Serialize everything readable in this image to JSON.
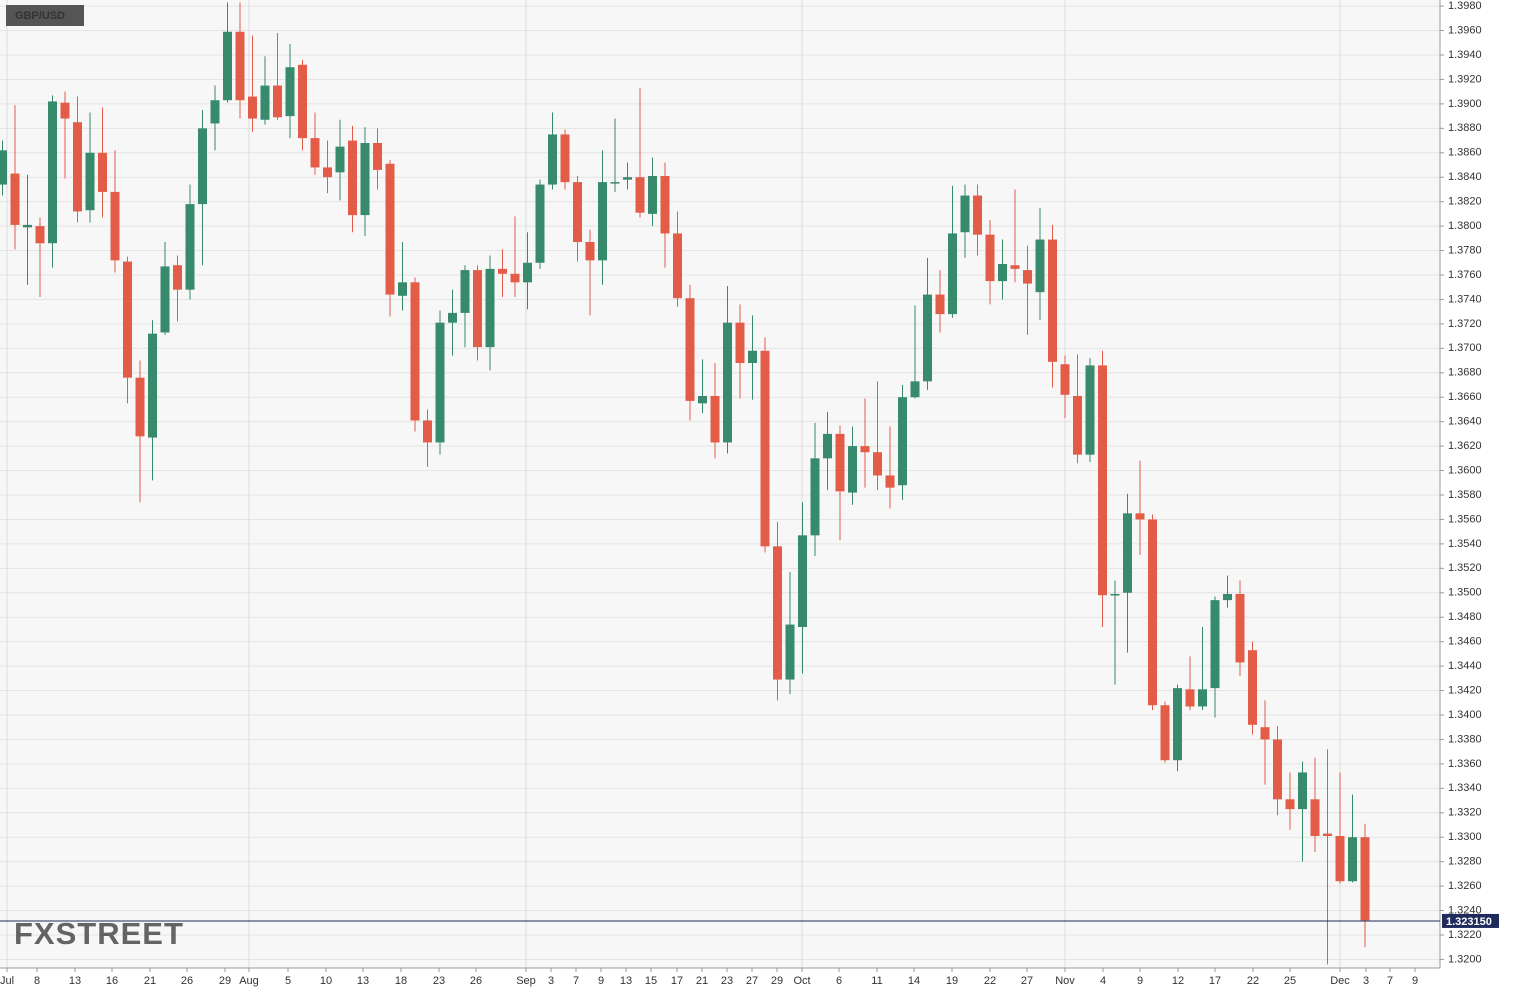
{
  "chart_data": {
    "type": "candlestick",
    "title": "GBP/USD",
    "watermark": "FXSTREET",
    "up_color": "#378a6c",
    "down_color": "#e25c48",
    "grid": true,
    "ylim": [
      1.3193,
      1.3985
    ],
    "xlim": [
      -0.2,
      115
    ],
    "yticks": [
      {
        "value": 1.32,
        "label": "1.3200"
      },
      {
        "value": 1.322,
        "label": "1.3220"
      },
      {
        "value": 1.324,
        "label": "1.3240"
      },
      {
        "value": 1.326,
        "label": "1.3260"
      },
      {
        "value": 1.328,
        "label": "1.3280"
      },
      {
        "value": 1.33,
        "label": "1.3300"
      },
      {
        "value": 1.332,
        "label": "1.3320"
      },
      {
        "value": 1.334,
        "label": "1.3340"
      },
      {
        "value": 1.336,
        "label": "1.3360"
      },
      {
        "value": 1.338,
        "label": "1.3380"
      },
      {
        "value": 1.34,
        "label": "1.3400"
      },
      {
        "value": 1.342,
        "label": "1.3420"
      },
      {
        "value": 1.344,
        "label": "1.3440"
      },
      {
        "value": 1.346,
        "label": "1.3460"
      },
      {
        "value": 1.348,
        "label": "1.3480"
      },
      {
        "value": 1.35,
        "label": "1.3500"
      },
      {
        "value": 1.352,
        "label": "1.3520"
      },
      {
        "value": 1.354,
        "label": "1.3540"
      },
      {
        "value": 1.356,
        "label": "1.3560"
      },
      {
        "value": 1.358,
        "label": "1.3580"
      },
      {
        "value": 1.36,
        "label": "1.3600"
      },
      {
        "value": 1.362,
        "label": "1.3620"
      },
      {
        "value": 1.364,
        "label": "1.3640"
      },
      {
        "value": 1.366,
        "label": "1.3660"
      },
      {
        "value": 1.368,
        "label": "1.3680"
      },
      {
        "value": 1.37,
        "label": "1.3700"
      },
      {
        "value": 1.372,
        "label": "1.3720"
      },
      {
        "value": 1.374,
        "label": "1.3740"
      },
      {
        "value": 1.376,
        "label": "1.3760"
      },
      {
        "value": 1.378,
        "label": "1.3780"
      },
      {
        "value": 1.38,
        "label": "1.3800"
      },
      {
        "value": 1.382,
        "label": "1.3820"
      },
      {
        "value": 1.384,
        "label": "1.3840"
      },
      {
        "value": 1.386,
        "label": "1.3860"
      },
      {
        "value": 1.388,
        "label": "1.3880"
      },
      {
        "value": 1.39,
        "label": "1.3900"
      },
      {
        "value": 1.392,
        "label": "1.3920"
      },
      {
        "value": 1.394,
        "label": "1.3940"
      },
      {
        "value": 1.396,
        "label": "1.3960"
      },
      {
        "value": 1.398,
        "label": "1.3980"
      }
    ],
    "xticks": [
      {
        "value": 0.36,
        "label": "Jul"
      },
      {
        "value": 2.76,
        "label": "8"
      },
      {
        "value": 5.8,
        "label": "13"
      },
      {
        "value": 8.76,
        "label": "16"
      },
      {
        "value": 11.8,
        "label": "21"
      },
      {
        "value": 14.76,
        "label": "26"
      },
      {
        "value": 17.8,
        "label": "29"
      },
      {
        "value": 19.72,
        "label": "Aug"
      },
      {
        "value": 22.84,
        "label": "5"
      },
      {
        "value": 25.88,
        "label": "10"
      },
      {
        "value": 28.84,
        "label": "13"
      },
      {
        "value": 31.88,
        "label": "18"
      },
      {
        "value": 34.92,
        "label": "23"
      },
      {
        "value": 37.88,
        "label": "26"
      },
      {
        "value": 41.88,
        "label": "Sep"
      },
      {
        "value": 43.88,
        "label": "3"
      },
      {
        "value": 45.88,
        "label": "7"
      },
      {
        "value": 47.88,
        "label": "9"
      },
      {
        "value": 49.88,
        "label": "13"
      },
      {
        "value": 51.88,
        "label": "15"
      },
      {
        "value": 53.96,
        "label": "17"
      },
      {
        "value": 55.96,
        "label": "21"
      },
      {
        "value": 57.96,
        "label": "23"
      },
      {
        "value": 59.96,
        "label": "27"
      },
      {
        "value": 61.96,
        "label": "29"
      },
      {
        "value": 63.96,
        "label": "Oct"
      },
      {
        "value": 66.92,
        "label": "6"
      },
      {
        "value": 69.96,
        "label": "11"
      },
      {
        "value": 72.92,
        "label": "14"
      },
      {
        "value": 75.96,
        "label": "19"
      },
      {
        "value": 79.0,
        "label": "22"
      },
      {
        "value": 81.96,
        "label": "27"
      },
      {
        "value": 85.0,
        "label": "Nov"
      },
      {
        "value": 88.04,
        "label": "4"
      },
      {
        "value": 91.0,
        "label": "9"
      },
      {
        "value": 94.04,
        "label": "12"
      },
      {
        "value": 97.0,
        "label": "17"
      },
      {
        "value": 100.04,
        "label": "22"
      },
      {
        "value": 103.0,
        "label": "25"
      },
      {
        "value": 107.0,
        "label": "Dec"
      },
      {
        "value": 109.08,
        "label": "3"
      },
      {
        "value": 111.0,
        "label": "7"
      },
      {
        "value": 113.0,
        "label": "9"
      }
    ],
    "last_price": {
      "value": 1.32315,
      "label": "1.323150"
    },
    "open": [
      1.3834,
      1.3843,
      1.3799,
      1.38,
      1.3786,
      1.3901,
      1.3885,
      1.3813,
      1.386,
      1.3828,
      1.3771,
      1.3676,
      1.3627,
      1.3713,
      1.3768,
      1.3748,
      1.3818,
      1.3884,
      1.3903,
      1.3959,
      1.3906,
      1.3887,
      1.3915,
      1.389,
      1.3932,
      1.3872,
      1.3848,
      1.3844,
      1.387,
      1.3809,
      1.3868,
      1.3851,
      1.3743,
      1.3754,
      1.3641,
      1.3623,
      1.3721,
      1.3729,
      1.3764,
      1.3701,
      1.3765,
      1.3761,
      1.3754,
      1.377,
      1.3834,
      1.3875,
      1.3836,
      1.3787,
      1.3772,
      1.3835,
      1.3838,
      1.384,
      1.381,
      1.3841,
      1.3794,
      1.3741,
      1.3655,
      1.3661,
      1.3623,
      1.3721,
      1.3688,
      1.3698,
      1.3538,
      1.3429,
      1.3472,
      1.3547,
      1.361,
      1.363,
      1.3582,
      1.362,
      1.3615,
      1.3596,
      1.3588,
      1.366,
      1.3673,
      1.3744,
      1.3728,
      1.3795,
      1.3825,
      1.3793,
      1.3755,
      1.3768,
      1.3764,
      1.3746,
      1.3789,
      1.3687,
      1.3661,
      1.3613,
      1.3686,
      1.3498,
      1.35,
      1.3565,
      1.356,
      1.3408,
      1.3363,
      1.3421,
      1.3407,
      1.3422,
      1.3494,
      1.3499,
      1.3453,
      1.339,
      1.338,
      1.3331,
      1.3323,
      1.3331,
      1.3303,
      1.3301,
      1.3264,
      1.33
    ],
    "high": [
      1.387,
      1.3899,
      1.3842,
      1.3807,
      1.3907,
      1.391,
      1.3906,
      1.3893,
      1.3897,
      1.3862,
      1.3775,
      1.369,
      1.3723,
      1.3787,
      1.3776,
      1.3834,
      1.3895,
      1.3915,
      1.3983,
      1.3983,
      1.3956,
      1.3939,
      1.3958,
      1.3949,
      1.3936,
      1.3893,
      1.387,
      1.3887,
      1.3882,
      1.3881,
      1.388,
      1.3854,
      1.3787,
      1.3758,
      1.365,
      1.3731,
      1.3748,
      1.3768,
      1.3768,
      1.3776,
      1.3781,
      1.3808,
      1.3795,
      1.3838,
      1.3893,
      1.3879,
      1.3841,
      1.3797,
      1.3862,
      1.3888,
      1.3852,
      1.3913,
      1.3856,
      1.3852,
      1.3812,
      1.3752,
      1.3691,
      1.3688,
      1.3751,
      1.3736,
      1.3727,
      1.3709,
      1.3558,
      1.3517,
      1.3574,
      1.3639,
      1.3648,
      1.3637,
      1.3636,
      1.3659,
      1.3673,
      1.3636,
      1.367,
      1.3735,
      1.3774,
      1.3764,
      1.3833,
      1.3834,
      1.3834,
      1.3805,
      1.3789,
      1.383,
      1.3784,
      1.3815,
      1.3801,
      1.3694,
      1.3695,
      1.3692,
      1.3698,
      1.351,
      1.3581,
      1.3608,
      1.3564,
      1.3411,
      1.3425,
      1.3448,
      1.3472,
      1.3497,
      1.3514,
      1.351,
      1.346,
      1.3412,
      1.3391,
      1.3353,
      1.3362,
      1.3365,
      1.3372,
      1.3353,
      1.3335,
      1.3311
    ],
    "low": [
      1.3825,
      1.3781,
      1.3752,
      1.3742,
      1.3766,
      1.3839,
      1.3803,
      1.3803,
      1.3807,
      1.3762,
      1.3655,
      1.3574,
      1.3592,
      1.3711,
      1.3722,
      1.374,
      1.3768,
      1.3862,
      1.3901,
      1.3888,
      1.3877,
      1.3883,
      1.3887,
      1.3872,
      1.3862,
      1.3842,
      1.3827,
      1.3821,
      1.3795,
      1.3792,
      1.383,
      1.3726,
      1.3731,
      1.3632,
      1.3603,
      1.3613,
      1.3694,
      1.3701,
      1.369,
      1.3682,
      1.3742,
      1.3742,
      1.3732,
      1.3765,
      1.383,
      1.383,
      1.3771,
      1.3727,
      1.3752,
      1.3828,
      1.383,
      1.3807,
      1.38,
      1.3766,
      1.3734,
      1.3641,
      1.3647,
      1.361,
      1.3614,
      1.3659,
      1.3658,
      1.3533,
      1.3412,
      1.3417,
      1.3434,
      1.353,
      1.3584,
      1.3543,
      1.3572,
      1.3586,
      1.3584,
      1.3569,
      1.3576,
      1.3659,
      1.3666,
      1.3713,
      1.3725,
      1.3774,
      1.3776,
      1.3736,
      1.374,
      1.3754,
      1.3711,
      1.3723,
      1.3668,
      1.3643,
      1.3606,
      1.3607,
      1.3472,
      1.3425,
      1.3451,
      1.3531,
      1.3404,
      1.3361,
      1.3354,
      1.3404,
      1.3404,
      1.3398,
      1.3488,
      1.3432,
      1.3384,
      1.3343,
      1.3318,
      1.3306,
      1.328,
      1.3288,
      1.3196,
      1.3262,
      1.3263,
      1.321
    ],
    "close": [
      1.3862,
      1.3801,
      1.3801,
      1.3786,
      1.3902,
      1.3888,
      1.3812,
      1.386,
      1.3828,
      1.3772,
      1.3676,
      1.3628,
      1.3712,
      1.3767,
      1.3748,
      1.3818,
      1.388,
      1.3903,
      1.3959,
      1.3903,
      1.3888,
      1.3915,
      1.3889,
      1.393,
      1.3872,
      1.3848,
      1.384,
      1.3865,
      1.3809,
      1.3868,
      1.3846,
      1.3744,
      1.3754,
      1.3641,
      1.3623,
      1.3721,
      1.3729,
      1.3764,
      1.3701,
      1.3765,
      1.3761,
      1.3754,
      1.377,
      1.3834,
      1.3875,
      1.3836,
      1.3787,
      1.3772,
      1.3836,
      1.3836,
      1.384,
      1.3811,
      1.3841,
      1.3794,
      1.3741,
      1.3657,
      1.3661,
      1.3623,
      1.3721,
      1.3688,
      1.3698,
      1.3538,
      1.3429,
      1.3474,
      1.3547,
      1.361,
      1.363,
      1.3583,
      1.362,
      1.3615,
      1.3596,
      1.3586,
      1.366,
      1.3673,
      1.3744,
      1.3728,
      1.3794,
      1.3825,
      1.3793,
      1.3755,
      1.3769,
      1.3765,
      1.3753,
      1.3789,
      1.3689,
      1.3662,
      1.3613,
      1.3686,
      1.3498,
      1.3499,
      1.3565,
      1.356,
      1.3408,
      1.3363,
      1.3422,
      1.3407,
      1.3421,
      1.3494,
      1.3499,
      1.3443,
      1.3392,
      1.338,
      1.3331,
      1.3323,
      1.3353,
      1.3301,
      1.3301,
      1.3264,
      1.33,
      1.3232
    ]
  }
}
